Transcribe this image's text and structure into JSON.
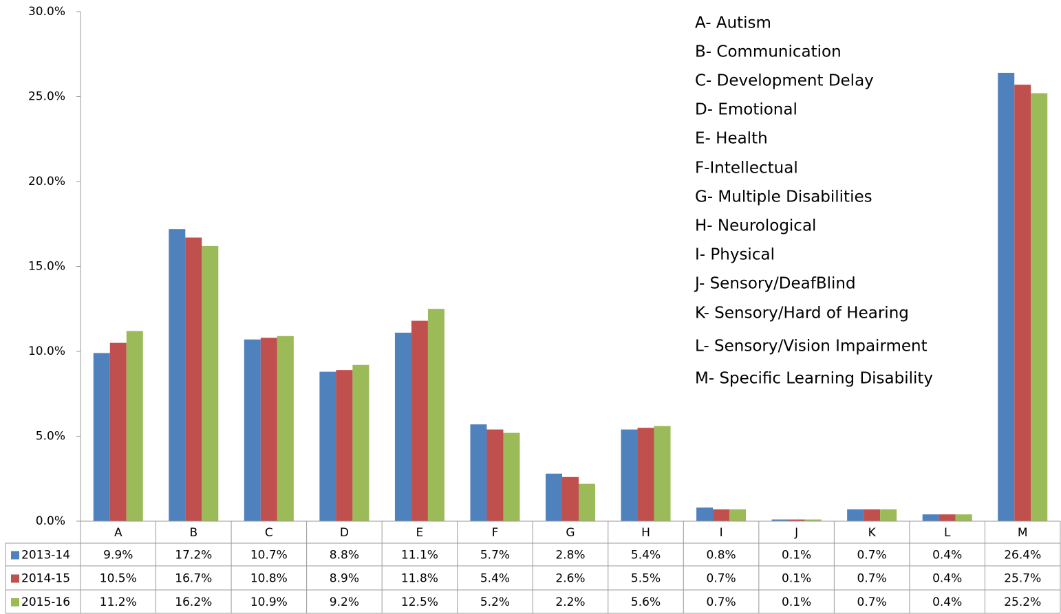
{
  "chart_data": {
    "type": "bar",
    "categories": [
      "A",
      "B",
      "C",
      "D",
      "E",
      "F",
      "G",
      "H",
      "I",
      "J",
      "K",
      "L",
      "M"
    ],
    "series": [
      {
        "name": "2013-14",
        "color": "#4f81bd",
        "values": [
          9.9,
          17.2,
          10.7,
          8.8,
          11.1,
          5.7,
          2.8,
          5.4,
          0.8,
          0.1,
          0.7,
          0.4,
          26.4
        ],
        "value_labels": [
          "9.9%",
          "17.2%",
          "10.7%",
          "8.8%",
          "11.1%",
          "5.7%",
          "2.8%",
          "5.4%",
          "0.8%",
          "0.1%",
          "0.7%",
          "0.4%",
          "26.4%"
        ]
      },
      {
        "name": "2014-15",
        "color": "#c0504d",
        "values": [
          10.5,
          16.7,
          10.8,
          8.9,
          11.8,
          5.4,
          2.6,
          5.5,
          0.7,
          0.1,
          0.7,
          0.4,
          25.7
        ],
        "value_labels": [
          "10.5%",
          "16.7%",
          "10.8%",
          "8.9%",
          "11.8%",
          "5.4%",
          "2.6%",
          "5.5%",
          "0.7%",
          "0.1%",
          "0.7%",
          "0.4%",
          "25.7%"
        ]
      },
      {
        "name": "2015-16",
        "color": "#9bbb59",
        "values": [
          11.2,
          16.2,
          10.9,
          9.2,
          12.5,
          5.2,
          2.2,
          5.6,
          0.7,
          0.1,
          0.7,
          0.4,
          25.2
        ],
        "value_labels": [
          "11.2%",
          "16.2%",
          "10.9%",
          "9.2%",
          "12.5%",
          "5.2%",
          "2.2%",
          "5.6%",
          "0.7%",
          "0.1%",
          "0.7%",
          "0.4%",
          "25.2%"
        ]
      }
    ],
    "ylim": [
      0,
      30
    ],
    "yticks": [
      {
        "value": 0,
        "label": "0.0%"
      },
      {
        "value": 5,
        "label": "5.0%"
      },
      {
        "value": 10,
        "label": "10.0%"
      },
      {
        "value": 15,
        "label": "15.0%"
      },
      {
        "value": 20,
        "label": "20.0%"
      },
      {
        "value": 25,
        "label": "25.0%"
      },
      {
        "value": 30,
        "label": "30.0%"
      }
    ],
    "annotations": [
      "A- Autism",
      "B- Communication",
      "C- Development Delay",
      "D- Emotional",
      "E- Health",
      "F-Intellectual",
      "G- Multiple Disabilities",
      "H- Neurological",
      "I- Physical",
      "J- Sensory/DeafBlind",
      "K- Sensory/Hard of Hearing",
      "L- Sensory/Vision Impairment",
      "M- Specific Learning Disability"
    ]
  }
}
